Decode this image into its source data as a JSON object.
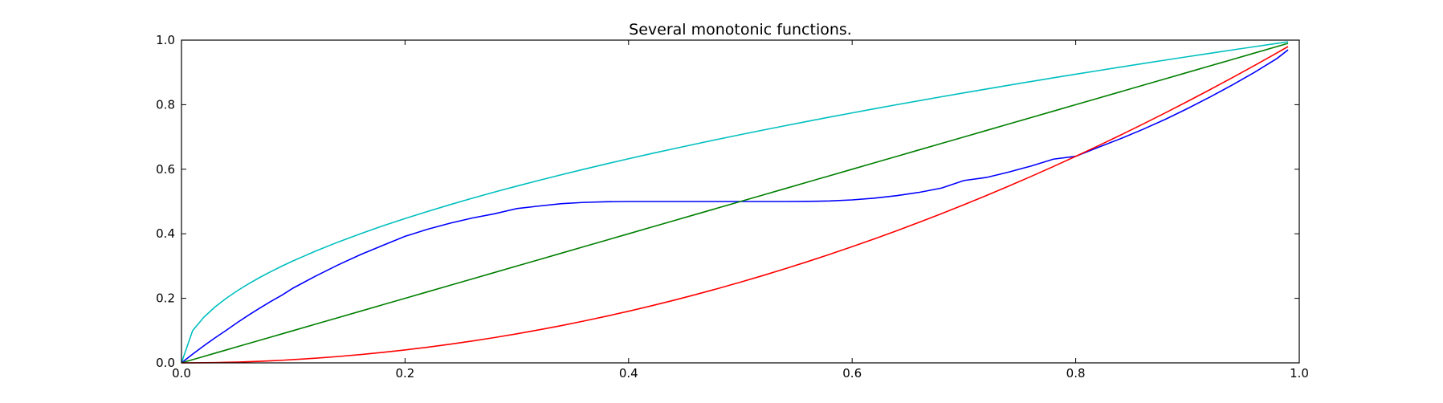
{
  "chart_data": {
    "type": "line",
    "title": "Several monotonic functions.",
    "xlabel": "",
    "ylabel": "",
    "xlim": [
      0.0,
      1.0
    ],
    "ylim": [
      0.0,
      1.0
    ],
    "grid": false,
    "x_ticks": [
      "0.0",
      "0.2",
      "0.4",
      "0.6",
      "0.8",
      "1.0"
    ],
    "y_ticks": [
      "0.0",
      "0.2",
      "0.4",
      "0.6",
      "0.8",
      "1.0"
    ],
    "x": [
      0,
      0.01,
      0.02,
      0.03,
      0.04,
      0.05,
      0.06,
      0.07,
      0.08,
      0.09,
      0.1,
      0.12,
      0.14,
      0.16,
      0.18,
      0.2,
      0.22,
      0.24,
      0.26,
      0.28,
      0.3,
      0.32,
      0.34,
      0.36,
      0.38,
      0.4,
      0.42,
      0.44,
      0.46,
      0.48,
      0.5,
      0.52,
      0.54,
      0.56,
      0.58,
      0.6,
      0.62,
      0.64,
      0.66,
      0.68,
      0.7,
      0.72,
      0.74,
      0.76,
      0.78,
      0.8,
      0.82,
      0.84,
      0.86,
      0.88,
      0.9,
      0.92,
      0.94,
      0.96,
      0.98,
      0.99
    ],
    "series": [
      {
        "color": "#00bfbf",
        "values": [
          0,
          0.1,
          0.1414,
          0.1732,
          0.2,
          0.2236,
          0.2449,
          0.2646,
          0.2828,
          0.3,
          0.3162,
          0.3464,
          0.3742,
          0.4,
          0.4243,
          0.4472,
          0.469,
          0.4899,
          0.5099,
          0.5292,
          0.5477,
          0.5657,
          0.5831,
          0.6,
          0.6164,
          0.6325,
          0.6481,
          0.6633,
          0.6782,
          0.6928,
          0.7071,
          0.7211,
          0.7348,
          0.7483,
          0.7616,
          0.7746,
          0.7874,
          0.8,
          0.8124,
          0.8246,
          0.8367,
          0.8485,
          0.8602,
          0.8718,
          0.8832,
          0.8944,
          0.9055,
          0.9165,
          0.9274,
          0.9381,
          0.9487,
          0.9592,
          0.9695,
          0.9798,
          0.9899,
          0.995
        ]
      },
      {
        "color": "#0000ff",
        "values": [
          0,
          0.027,
          0.0528,
          0.0774,
          0.1008,
          0.125,
          0.1478,
          0.1696,
          0.1904,
          0.21,
          0.232,
          0.2688,
          0.3033,
          0.3351,
          0.3639,
          0.392,
          0.4138,
          0.4326,
          0.4487,
          0.462,
          0.478,
          0.486,
          0.4932,
          0.4972,
          0.4992,
          0.5,
          0.5,
          0.5,
          0.5,
          0.5,
          0.5,
          0.5,
          0.5,
          0.5004,
          0.5016,
          0.505,
          0.5104,
          0.5181,
          0.5283,
          0.5417,
          0.565,
          0.5744,
          0.5912,
          0.6098,
          0.6312,
          0.64,
          0.6675,
          0.6945,
          0.7234,
          0.7543,
          0.788,
          0.8236,
          0.8608,
          0.9003,
          0.943,
          0.97
        ]
      },
      {
        "color": "#007f00",
        "values": [
          0,
          0.01,
          0.02,
          0.03,
          0.04,
          0.05,
          0.06,
          0.07,
          0.08,
          0.09,
          0.1,
          0.12,
          0.14,
          0.16,
          0.18,
          0.2,
          0.22,
          0.24,
          0.26,
          0.28,
          0.3,
          0.32,
          0.34,
          0.36,
          0.38,
          0.4,
          0.42,
          0.44,
          0.46,
          0.48,
          0.5,
          0.52,
          0.54,
          0.56,
          0.58,
          0.6,
          0.62,
          0.64,
          0.66,
          0.68,
          0.7,
          0.72,
          0.74,
          0.76,
          0.78,
          0.8,
          0.82,
          0.84,
          0.86,
          0.88,
          0.9,
          0.92,
          0.94,
          0.96,
          0.98,
          0.99
        ]
      },
      {
        "color": "#ff0000",
        "values": [
          0,
          0.0001,
          0.0004,
          0.0009,
          0.0016,
          0.0025,
          0.0036,
          0.0049,
          0.0064,
          0.0081,
          0.01,
          0.0144,
          0.0196,
          0.0256,
          0.0324,
          0.04,
          0.0484,
          0.0576,
          0.0676,
          0.0784,
          0.09,
          0.1024,
          0.1156,
          0.1296,
          0.1444,
          0.16,
          0.1764,
          0.1936,
          0.2116,
          0.2304,
          0.25,
          0.2704,
          0.2916,
          0.3136,
          0.3364,
          0.36,
          0.3844,
          0.4096,
          0.4356,
          0.4624,
          0.49,
          0.5184,
          0.5476,
          0.5776,
          0.6084,
          0.64,
          0.6724,
          0.7056,
          0.7396,
          0.7744,
          0.81,
          0.8464,
          0.8836,
          0.9216,
          0.9604,
          0.9801
        ]
      }
    ]
  }
}
